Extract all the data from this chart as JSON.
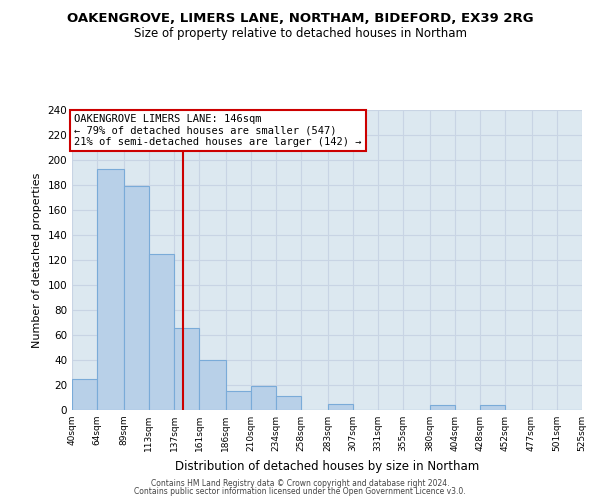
{
  "title": "OAKENGROVE, LIMERS LANE, NORTHAM, BIDEFORD, EX39 2RG",
  "subtitle": "Size of property relative to detached houses in Northam",
  "xlabel": "Distribution of detached houses by size in Northam",
  "ylabel": "Number of detached properties",
  "bar_edges": [
    40,
    64,
    89,
    113,
    137,
    161,
    186,
    210,
    234,
    258,
    283,
    307,
    331,
    355,
    380,
    404,
    428,
    452,
    477,
    501,
    525
  ],
  "bar_heights": [
    25,
    193,
    179,
    125,
    66,
    40,
    15,
    19,
    11,
    0,
    5,
    0,
    0,
    0,
    4,
    0,
    4,
    0,
    0,
    0
  ],
  "bar_color": "#b8d0e8",
  "bar_edge_color": "#7aaBd8",
  "reference_line_x": 146,
  "reference_line_color": "#cc0000",
  "annotation_line1": "OAKENGROVE LIMERS LANE: 146sqm",
  "annotation_line2": "← 79% of detached houses are smaller (547)",
  "annotation_line3": "21% of semi-detached houses are larger (142) →",
  "ylim": [
    0,
    240
  ],
  "yticks": [
    0,
    20,
    40,
    60,
    80,
    100,
    120,
    140,
    160,
    180,
    200,
    220,
    240
  ],
  "tick_labels": [
    "40sqm",
    "64sqm",
    "89sqm",
    "113sqm",
    "137sqm",
    "161sqm",
    "186sqm",
    "210sqm",
    "234sqm",
    "258sqm",
    "283sqm",
    "307sqm",
    "331sqm",
    "355sqm",
    "380sqm",
    "404sqm",
    "428sqm",
    "452sqm",
    "477sqm",
    "501sqm",
    "525sqm"
  ],
  "footer_line1": "Contains HM Land Registry data © Crown copyright and database right 2024.",
  "footer_line2": "Contains public sector information licensed under the Open Government Licence v3.0.",
  "grid_color": "#c8d4e4",
  "background_color": "#dce8f0"
}
